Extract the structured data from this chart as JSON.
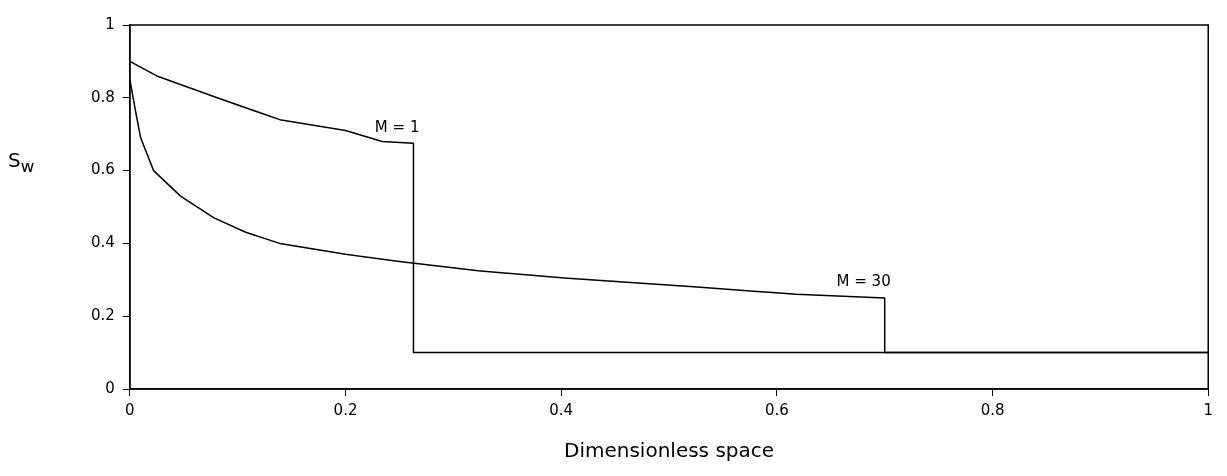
{
  "chart_data": {
    "type": "line",
    "xlabel": "Dimensionless space",
    "ylabel": "S$_{w}$",
    "xlim": [
      0,
      1
    ],
    "ylim": [
      0,
      1
    ],
    "xticks": [
      0,
      0.2,
      0.4,
      0.6,
      0.8,
      1
    ],
    "yticks": [
      0,
      0.2,
      0.4,
      0.6,
      0.8,
      1
    ],
    "grid": false,
    "legend": false,
    "marker": "none",
    "line_style": "solid",
    "annotations": [
      {
        "text": "M = 1",
        "x": 0.263,
        "y": 0.675
      },
      {
        "text": "M = 30",
        "x": 0.7,
        "y": 0.25
      }
    ],
    "series": [
      {
        "color": "#000000",
        "x": [
          0,
          0.025,
          0.081,
          0.139,
          0.2,
          0.234,
          0.263,
          0.263,
          1
        ],
        "values": [
          0.9,
          0.86,
          0.8,
          0.74,
          0.71,
          0.68,
          0.675,
          0.1,
          0.1
        ]
      },
      {
        "color": "#000000",
        "x": [
          0,
          0.0055,
          0.01,
          0.022,
          0.047,
          0.078,
          0.108,
          0.139,
          0.2,
          0.25,
          0.323,
          0.403,
          0.526,
          0.618,
          0.7,
          0.7,
          1
        ],
        "values": [
          0.85,
          0.76,
          0.69,
          0.6,
          0.53,
          0.47,
          0.43,
          0.4,
          0.37,
          0.35,
          0.325,
          0.305,
          0.28,
          0.26,
          0.25,
          0.1,
          0.1
        ]
      }
    ]
  }
}
